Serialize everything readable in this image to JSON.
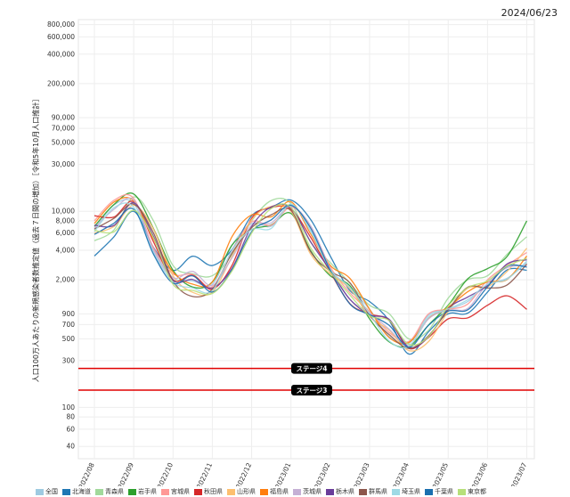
{
  "header": {
    "date": "2024/06/23"
  },
  "chart_data": {
    "type": "line",
    "ylabel": "人口100万人あたりの新規感染者数推定値（過去７日間の増加）［令和5年10月人口推計］",
    "yscale": "log",
    "ylim": [
      30,
      900000
    ],
    "yticks": [
      {
        "v": 800000,
        "label": "800,000"
      },
      {
        "v": 600000,
        "label": "600,000"
      },
      {
        "v": 400000,
        "label": "400,000"
      },
      {
        "v": 200000,
        "label": "200,000"
      },
      {
        "v": 90000,
        "label": "90,000"
      },
      {
        "v": 70000,
        "label": "70,000"
      },
      {
        "v": 50000,
        "label": "50,000"
      },
      {
        "v": 30000,
        "label": "30,000"
      },
      {
        "v": 10000,
        "label": "10,000"
      },
      {
        "v": 8000,
        "label": "8,000"
      },
      {
        "v": 6000,
        "label": "6,000"
      },
      {
        "v": 4000,
        "label": "4,000"
      },
      {
        "v": 2000,
        "label": "2,000"
      },
      {
        "v": 900,
        "label": "900"
      },
      {
        "v": 700,
        "label": "700"
      },
      {
        "v": 500,
        "label": "500"
      },
      {
        "v": 300,
        "label": "300"
      },
      {
        "v": 100,
        "label": "100"
      },
      {
        "v": 80,
        "label": "80"
      },
      {
        "v": 60,
        "label": "60"
      },
      {
        "v": 40,
        "label": "40"
      }
    ],
    "x": [
      "2022/08",
      "2022/09",
      "2022/10",
      "2022/11",
      "2022/12",
      "2023/01",
      "2023/02",
      "2023/03",
      "2023/04",
      "2023/05",
      "2023/06",
      "2023/07"
    ],
    "thresholds": [
      {
        "label": "ステージ4",
        "value": 250,
        "color": "#e00000"
      },
      {
        "label": "ステージ3",
        "value": 150,
        "color": "#e00000"
      }
    ],
    "series": [
      {
        "name": "全国",
        "color": "#9ecae1",
        "values": [
          6500,
          12000,
          2100,
          1800,
          7500,
          11500,
          2500,
          1000,
          450,
          1000,
          1800,
          3000
        ]
      },
      {
        "name": "北海道",
        "color": "#1f77b4",
        "values": [
          3500,
          10000,
          2500,
          2800,
          9000,
          13000,
          3500,
          1200,
          350,
          900,
          1500,
          2500
        ]
      },
      {
        "name": "青森県",
        "color": "#a1d99b",
        "values": [
          5000,
          14000,
          2800,
          2200,
          8000,
          12000,
          3000,
          1100,
          500,
          1300,
          2200,
          5500
        ]
      },
      {
        "name": "岩手県",
        "color": "#2ca02c",
        "values": [
          7000,
          15000,
          2500,
          1900,
          6500,
          9500,
          2200,
          800,
          420,
          1100,
          2600,
          8000
        ]
      },
      {
        "name": "宮城県",
        "color": "#ff9896",
        "values": [
          8000,
          13500,
          2300,
          1700,
          7800,
          11000,
          2700,
          950,
          470,
          1000,
          2000,
          3800
        ]
      },
      {
        "name": "秋田県",
        "color": "#d62728",
        "values": [
          9000,
          12500,
          2000,
          1600,
          8500,
          10500,
          2400,
          900,
          400,
          800,
          1100,
          1000
        ]
      },
      {
        "name": "山形県",
        "color": "#fdbf6f",
        "values": [
          6000,
          11500,
          2200,
          1500,
          8200,
          10000,
          2300,
          850,
          380,
          950,
          1700,
          4200
        ]
      },
      {
        "name": "福島県",
        "color": "#ff7f0e",
        "values": [
          7500,
          12800,
          2400,
          1900,
          9200,
          12500,
          2800,
          1000,
          460,
          1050,
          1900,
          3500
        ]
      },
      {
        "name": "茨城県",
        "color": "#c5b0d5",
        "values": [
          6800,
          13000,
          2100,
          1750,
          7200,
          11200,
          2600,
          920,
          430,
          980,
          1850,
          2800
        ]
      },
      {
        "name": "栃木県",
        "color": "#6a3d9a",
        "values": [
          7200,
          12200,
          2000,
          1650,
          7000,
          10800,
          2500,
          880,
          410,
          1020,
          1750,
          3200
        ]
      },
      {
        "name": "群馬県",
        "color": "#8c564b",
        "values": [
          6600,
          11800,
          1950,
          1600,
          6800,
          10200,
          2450,
          870,
          400,
          990,
          1650,
          2900
        ]
      },
      {
        "name": "埼玉県",
        "color": "#9edae5",
        "values": [
          6200,
          11000,
          1900,
          1550,
          6500,
          11800,
          2550,
          900,
          420,
          1010,
          1800,
          3100
        ]
      },
      {
        "name": "千葉県",
        "color": "#1a6faf",
        "values": [
          5800,
          10500,
          1850,
          1500,
          6200,
          11500,
          2500,
          880,
          410,
          960,
          1700,
          2700
        ]
      },
      {
        "name": "東京都",
        "color": "#b7e07a",
        "values": [
          6400,
          10200,
          1800,
          1450,
          6000,
          10900,
          2400,
          860,
          440,
          1080,
          1950,
          3300
        ]
      }
    ]
  }
}
